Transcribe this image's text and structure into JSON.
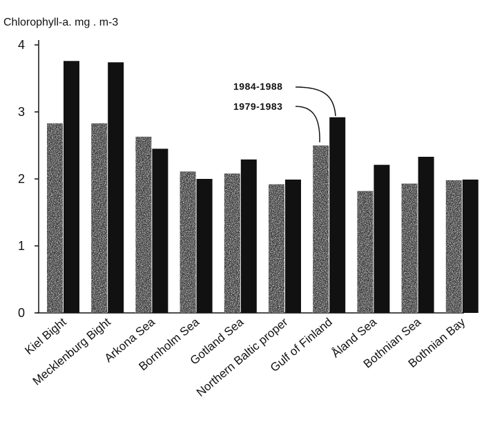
{
  "chart_data": {
    "type": "bar",
    "ylabel": "Chlorophyll-a. mg . m-3",
    "xlabel": "",
    "title": "",
    "ylim": [
      0,
      4
    ],
    "yticks": [
      "0",
      "1",
      "2",
      "3",
      "4"
    ],
    "categories": [
      "Kiel Bight",
      "Mecklenburg Bight",
      "Arkona Sea",
      "Bornholm Sea",
      "Gotland Sea",
      "Northern Baltic proper",
      "Gulf of Finland",
      "Åland Sea",
      "Bothnian Sea",
      "Bothnian Bay"
    ],
    "series": [
      {
        "name": "1979-1983",
        "values": [
          2.83,
          2.83,
          2.63,
          2.11,
          2.08,
          1.92,
          2.5,
          1.82,
          1.93,
          1.98
        ],
        "color": "#3a3a3a"
      },
      {
        "name": "1984-1988",
        "values": [
          3.76,
          3.74,
          2.45,
          2.0,
          2.29,
          1.99,
          2.92,
          2.21,
          2.33,
          1.99
        ],
        "color": "#111111"
      }
    ],
    "annotations": [
      "1984-1988",
      "1979-1983"
    ],
    "grid": false,
    "legend": "none"
  }
}
